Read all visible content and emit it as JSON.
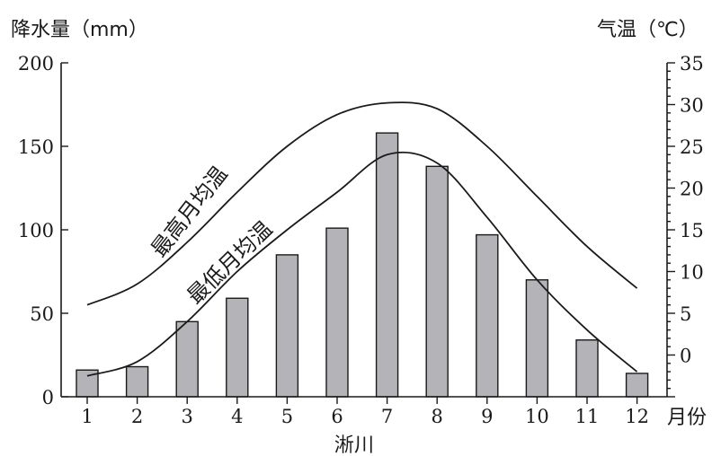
{
  "chart_data": {
    "type": "bar",
    "location": "淅川",
    "categories": [
      "1",
      "2",
      "3",
      "4",
      "5",
      "6",
      "7",
      "8",
      "9",
      "10",
      "11",
      "12"
    ],
    "x_unit": "月份",
    "left_axis": {
      "label": "降水量（mm）",
      "ylim": [
        0,
        200
      ],
      "ticks": [
        "0",
        "50",
        "100",
        "150",
        "200"
      ]
    },
    "right_axis": {
      "label": "气温（℃）",
      "ylim": [
        -5,
        35
      ],
      "ticks": [
        "0",
        "5",
        "10",
        "15",
        "20",
        "25",
        "30",
        "35"
      ]
    },
    "series": [
      {
        "name": "降水量",
        "type": "bar",
        "axis": "left",
        "values": [
          16,
          18,
          45,
          59,
          85,
          101,
          158,
          138,
          97,
          70,
          34,
          14
        ]
      },
      {
        "name": "最高月均温",
        "type": "line",
        "axis": "right",
        "values": [
          6.0,
          8.5,
          13.5,
          19.5,
          25.0,
          28.8,
          30.2,
          29.5,
          25.0,
          19.0,
          13.0,
          8.0
        ]
      },
      {
        "name": "最低月均温",
        "type": "line",
        "axis": "right",
        "values": [
          -2.5,
          -0.8,
          4.0,
          10.0,
          15.0,
          19.5,
          24.0,
          23.0,
          16.5,
          9.0,
          3.0,
          -2.0
        ]
      }
    ],
    "grid": false,
    "legend": "none"
  }
}
